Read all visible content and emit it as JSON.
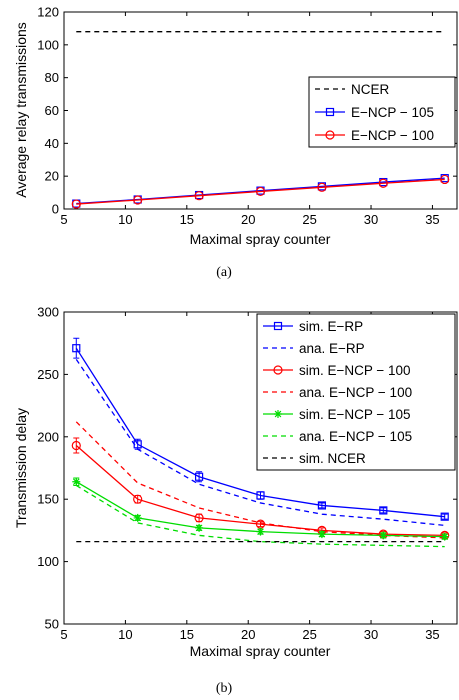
{
  "chart_data": [
    {
      "type": "line",
      "caption": "(a)",
      "xlabel": "Maximal spray counter",
      "ylabel": "Average relay transmissions",
      "xlim": [
        5,
        37
      ],
      "ylim": [
        0,
        120
      ],
      "xticks": [
        5,
        10,
        15,
        20,
        25,
        30,
        35
      ],
      "yticks": [
        0,
        20,
        40,
        60,
        80,
        100,
        120
      ],
      "grid": false,
      "legend_position": "center-right",
      "x": [
        6,
        11,
        16,
        21,
        26,
        31,
        36
      ],
      "series": [
        {
          "name": "NCER",
          "color": "#000000",
          "dash": "dashed",
          "marker": "none",
          "values": [
            108,
            108,
            108,
            108,
            108,
            108,
            108
          ]
        },
        {
          "name": "E−NCP − 105",
          "color": "#0000ff",
          "dash": "solid",
          "marker": "square",
          "values": [
            3.3,
            5.8,
            8.5,
            11.2,
            13.8,
            16.4,
            18.8
          ]
        },
        {
          "name": "E−NCP − 100",
          "color": "#ff0000",
          "dash": "solid",
          "marker": "circle",
          "values": [
            3.0,
            5.5,
            8.1,
            10.7,
            13.2,
            15.7,
            18.0
          ]
        }
      ]
    },
    {
      "type": "line",
      "caption": "(b)",
      "xlabel": "Maximal spray counter",
      "ylabel": "Transmission delay",
      "xlim": [
        5,
        37
      ],
      "ylim": [
        50,
        300
      ],
      "xticks": [
        5,
        10,
        15,
        20,
        25,
        30,
        35
      ],
      "yticks": [
        50,
        100,
        150,
        200,
        250,
        300
      ],
      "grid": false,
      "legend_position": "top-right",
      "x": [
        6,
        11,
        16,
        21,
        26,
        31,
        36
      ],
      "series": [
        {
          "name": "sim. E−RP",
          "color": "#0000ff",
          "dash": "solid",
          "marker": "square",
          "values": [
            271,
            194,
            168,
            153,
            145,
            141,
            136
          ],
          "errors": [
            8,
            4,
            4,
            3,
            2,
            2,
            2
          ]
        },
        {
          "name": "ana. E−RP",
          "color": "#0000ff",
          "dash": "dashed",
          "marker": "none",
          "values": [
            262,
            190,
            162,
            147,
            138,
            134,
            129
          ]
        },
        {
          "name": "sim. E−NCP − 100",
          "color": "#ff0000",
          "dash": "solid",
          "marker": "circle",
          "values": [
            193,
            150,
            135,
            130,
            125,
            122,
            121
          ],
          "errors": [
            6,
            3,
            3,
            2,
            2,
            2,
            2
          ]
        },
        {
          "name": "ana. E−NCP − 100",
          "color": "#ff0000",
          "dash": "dashed",
          "marker": "none",
          "values": [
            212,
            163,
            143,
            131,
            124,
            121,
            119
          ]
        },
        {
          "name": "sim. E−NCP − 105",
          "color": "#00dd00",
          "dash": "solid",
          "marker": "star",
          "values": [
            164,
            135,
            127,
            124,
            122,
            121,
            120
          ],
          "errors": [
            3,
            2,
            2,
            2,
            2,
            2,
            2
          ]
        },
        {
          "name": "ana. E−NCP − 105",
          "color": "#00dd00",
          "dash": "dashed",
          "marker": "none",
          "values": [
            161,
            131,
            121,
            116,
            114,
            113,
            112
          ]
        },
        {
          "name": "sim. NCER",
          "color": "#000000",
          "dash": "dashed",
          "marker": "none",
          "values": [
            116,
            116,
            116,
            116,
            116,
            116,
            116
          ]
        }
      ]
    }
  ]
}
